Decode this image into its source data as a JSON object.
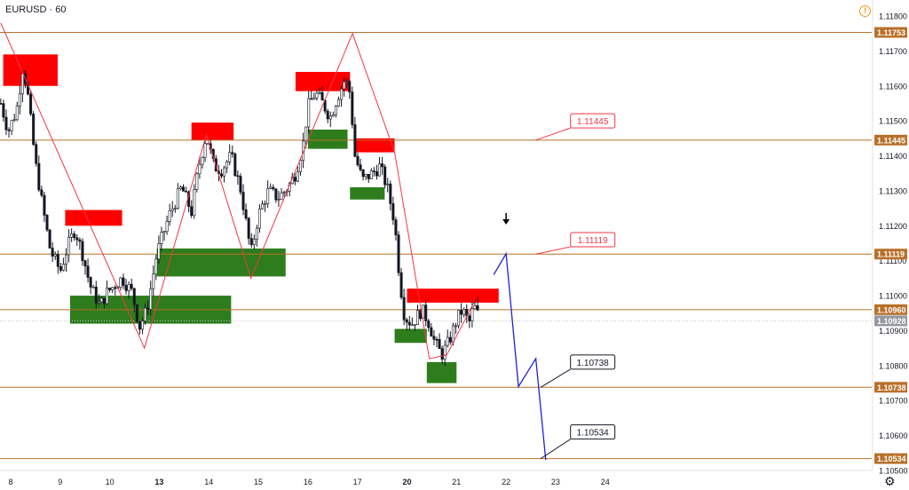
{
  "header": {
    "symbol": "EURUSD",
    "separator": "·",
    "interval": "60"
  },
  "colors": {
    "candle": "#131722",
    "level_line": "#b8702a",
    "level_label_bg": "#b8702a",
    "current_price_bg": "#9598a1",
    "supply_zone": "#ff0000",
    "demand_zone": "#2e7d1d",
    "zigzag": "#f23645",
    "projection": "#1f1fe0",
    "callout_red": "#f23645",
    "callout_black": "#131722"
  },
  "icons": {
    "warning": "warning-icon",
    "settings": "gear-icon",
    "arrow": "down-arrow-icon"
  },
  "chart_data": {
    "type": "candlestick",
    "symbol": "EURUSD",
    "interval": "60",
    "ylim": [
      1.105,
      1.1185
    ],
    "y_ticks": [
      "1.11800",
      "1.11700",
      "1.11600",
      "1.11500",
      "1.11400",
      "1.11300",
      "1.11200",
      "1.11100",
      "1.11000",
      "1.10900",
      "1.10800",
      "1.10700",
      "1.10600",
      "1.10500"
    ],
    "y_tick_values": [
      1.118,
      1.117,
      1.116,
      1.115,
      1.114,
      1.113,
      1.112,
      1.111,
      1.11,
      1.109,
      1.108,
      1.107,
      1.106,
      1.105
    ],
    "x_range": [
      7.8,
      25.1
    ],
    "x_ticks": [
      {
        "label": "8",
        "x": 8,
        "bold": false
      },
      {
        "label": "9",
        "x": 9,
        "bold": false
      },
      {
        "label": "10",
        "x": 10,
        "bold": false
      },
      {
        "label": "13",
        "x": 11,
        "bold": true
      },
      {
        "label": "14",
        "x": 12,
        "bold": false
      },
      {
        "label": "15",
        "x": 13,
        "bold": false
      },
      {
        "label": "16",
        "x": 14,
        "bold": false
      },
      {
        "label": "17",
        "x": 15,
        "bold": false
      },
      {
        "label": "20",
        "x": 16,
        "bold": true
      },
      {
        "label": "21",
        "x": 17,
        "bold": false
      },
      {
        "label": "22",
        "x": 18,
        "bold": false
      },
      {
        "label": "23",
        "x": 19,
        "bold": false
      },
      {
        "label": "24",
        "x": 20,
        "bold": false
      }
    ],
    "levels": [
      {
        "price": 1.11753,
        "label": "1.11753"
      },
      {
        "price": 1.11445,
        "label": "1.11445"
      },
      {
        "price": 1.11119,
        "label": "1.11119"
      },
      {
        "price": 1.1096,
        "label": "1.10960"
      },
      {
        "price": 1.10738,
        "label": "1.10738"
      },
      {
        "price": 1.10534,
        "label": "1.10534"
      }
    ],
    "current_price": {
      "price": 1.10928,
      "label": "1.10928"
    },
    "price_path": [
      [
        7.8,
        1.1155
      ],
      [
        7.95,
        1.1147
      ],
      [
        8.12,
        1.1153
      ],
      [
        8.25,
        1.1166
      ],
      [
        8.35,
        1.1157
      ],
      [
        8.5,
        1.1138
      ],
      [
        8.65,
        1.1125
      ],
      [
        8.8,
        1.1113
      ],
      [
        9.0,
        1.1107
      ],
      [
        9.15,
        1.1114
      ],
      [
        9.3,
        1.1119
      ],
      [
        9.45,
        1.1112
      ],
      [
        9.6,
        1.1103
      ],
      [
        9.8,
        1.1097
      ],
      [
        9.95,
        1.1101
      ],
      [
        10.1,
        1.1103
      ],
      [
        10.25,
        1.1105
      ],
      [
        10.45,
        1.1101
      ],
      [
        10.6,
        1.1091
      ],
      [
        10.75,
        1.1096
      ],
      [
        10.95,
        1.1112
      ],
      [
        11.2,
        1.1123
      ],
      [
        11.45,
        1.1131
      ],
      [
        11.65,
        1.1124
      ],
      [
        11.8,
        1.1137
      ],
      [
        11.95,
        1.1146
      ],
      [
        12.1,
        1.1137
      ],
      [
        12.25,
        1.1136
      ],
      [
        12.45,
        1.114
      ],
      [
        12.65,
        1.113
      ],
      [
        12.85,
        1.1112
      ],
      [
        13.0,
        1.1123
      ],
      [
        13.2,
        1.113
      ],
      [
        13.4,
        1.1128
      ],
      [
        13.6,
        1.1131
      ],
      [
        13.75,
        1.1135
      ],
      [
        13.9,
        1.1143
      ],
      [
        14.0,
        1.1154
      ],
      [
        14.15,
        1.1158
      ],
      [
        14.3,
        1.1155
      ],
      [
        14.45,
        1.1151
      ],
      [
        14.6,
        1.1157
      ],
      [
        14.75,
        1.1162
      ],
      [
        14.85,
        1.1158
      ],
      [
        14.95,
        1.114
      ],
      [
        15.1,
        1.1133
      ],
      [
        15.3,
        1.1135
      ],
      [
        15.45,
        1.1137
      ],
      [
        15.6,
        1.1131
      ],
      [
        15.75,
        1.1121
      ],
      [
        15.85,
        1.1105
      ],
      [
        15.95,
        1.1094
      ],
      [
        16.1,
        1.1092
      ],
      [
        16.3,
        1.1096
      ],
      [
        16.45,
        1.1092
      ],
      [
        16.55,
        1.1087
      ],
      [
        16.7,
        1.1083
      ],
      [
        16.85,
        1.1087
      ],
      [
        17.0,
        1.1093
      ],
      [
        17.12,
        1.1096
      ],
      [
        17.25,
        1.1092
      ],
      [
        17.35,
        1.1097
      ],
      [
        17.45,
        1.1094
      ]
    ],
    "supply_zones": [
      {
        "x0": 7.85,
        "x1": 8.95,
        "y0": 1.116,
        "y1": 1.1169
      },
      {
        "x0": 9.1,
        "x1": 10.25,
        "y0": 1.112,
        "y1": 1.11245
      },
      {
        "x0": 11.65,
        "x1": 12.5,
        "y0": 1.11445,
        "y1": 1.11495
      },
      {
        "x0": 13.75,
        "x1": 14.85,
        "y0": 1.11585,
        "y1": 1.1164
      },
      {
        "x0": 14.95,
        "x1": 15.75,
        "y0": 1.1141,
        "y1": 1.1145
      },
      {
        "x0": 16.0,
        "x1": 17.85,
        "y0": 1.1098,
        "y1": 1.1102
      }
    ],
    "demand_zones": [
      {
        "x0": 9.2,
        "x1": 12.45,
        "y0": 1.1092,
        "y1": 1.11
      },
      {
        "x0": 10.95,
        "x1": 13.55,
        "y0": 1.11055,
        "y1": 1.11135
      },
      {
        "x0": 14.0,
        "x1": 14.8,
        "y0": 1.1142,
        "y1": 1.11475
      },
      {
        "x0": 14.85,
        "x1": 15.55,
        "y0": 1.11275,
        "y1": 1.1131
      },
      {
        "x0": 15.75,
        "x1": 16.4,
        "y0": 1.10865,
        "y1": 1.10905
      },
      {
        "x0": 16.4,
        "x1": 17.0,
        "y0": 1.1075,
        "y1": 1.1081
      }
    ],
    "zigzag": [
      [
        7.8,
        1.1178
      ],
      [
        10.7,
        1.1085
      ],
      [
        11.95,
        1.1146
      ],
      [
        12.85,
        1.1105
      ],
      [
        14.9,
        1.1175
      ],
      [
        15.75,
        1.1141
      ],
      [
        16.45,
        1.1082
      ],
      [
        16.8,
        1.1083
      ],
      [
        17.35,
        1.1098
      ]
    ],
    "projection": [
      [
        17.75,
        1.1106
      ],
      [
        18.0,
        1.1112
      ],
      [
        18.25,
        1.1074
      ],
      [
        18.6,
        1.1082
      ],
      [
        18.8,
        1.1053
      ]
    ],
    "callouts": [
      {
        "label": "1.11445",
        "price": 1.11445,
        "x_anchor": 18.6,
        "x_box": 19.3,
        "y_box": 1.115,
        "style": "red"
      },
      {
        "label": "1.11119",
        "price": 1.11119,
        "x_anchor": 18.6,
        "x_box": 19.3,
        "y_box": 1.1116,
        "style": "red"
      },
      {
        "label": "1.10738",
        "price": 1.10738,
        "x_anchor": 18.7,
        "x_box": 19.3,
        "y_box": 1.1081,
        "style": "black"
      },
      {
        "label": "1.10534",
        "price": 1.10534,
        "x_anchor": 18.7,
        "x_box": 19.3,
        "y_box": 1.1061,
        "style": "black"
      }
    ],
    "annotation_arrow": {
      "x": 18.0,
      "price": 1.1115
    }
  }
}
